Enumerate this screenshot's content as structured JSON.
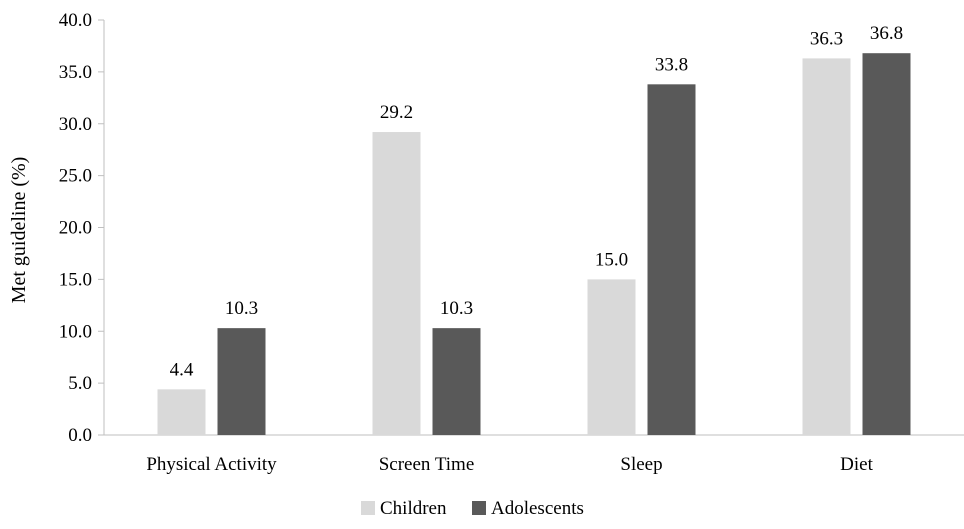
{
  "chart_data": {
    "type": "bar",
    "title": "",
    "xlabel": "",
    "ylabel": "Met guideline (%)",
    "ylim": [
      0,
      40
    ],
    "y_ticks": [
      "0.0",
      "5.0",
      "10.0",
      "15.0",
      "20.0",
      "25.0",
      "30.0",
      "35.0",
      "40.0"
    ],
    "grid": false,
    "legend_position": "bottom",
    "categories": [
      "Physical Activity",
      "Screen Time",
      "Sleep",
      "Diet"
    ],
    "series": [
      {
        "name": "Children",
        "color": "#d9d9d9",
        "values": [
          4.4,
          29.2,
          15.0,
          36.3
        ],
        "labels": [
          "4.4",
          "29.2",
          "15.0",
          "36.3"
        ]
      },
      {
        "name": "Adolescents",
        "color": "#595959",
        "values": [
          10.3,
          10.3,
          33.8,
          36.8
        ],
        "labels": [
          "10.3",
          "10.3",
          "33.8",
          "36.8"
        ]
      }
    ]
  }
}
